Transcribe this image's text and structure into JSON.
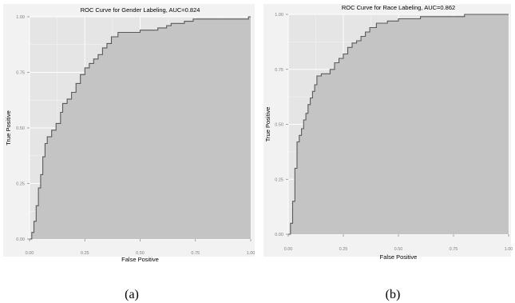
{
  "chart_data": [
    {
      "type": "area",
      "title": "ROC Curve for Gender Labeling, AUC=0.824",
      "xlabel": "False Positive",
      "ylabel": "True Positive",
      "xlim": [
        0,
        1
      ],
      "ylim": [
        0,
        1
      ],
      "xticks": [
        "0.00",
        "0.25",
        "0.50",
        "0.75",
        "1.00"
      ],
      "yticks": [
        "0.00",
        "0.25",
        "0.50",
        "0.75",
        "1.00"
      ],
      "grid": true,
      "caption": "(a)",
      "series": [
        {
          "x": [
            0.0,
            0.01,
            0.01,
            0.02,
            0.02,
            0.03,
            0.03,
            0.04,
            0.04,
            0.05,
            0.05,
            0.06,
            0.06,
            0.07,
            0.07,
            0.08,
            0.08,
            0.1,
            0.1,
            0.12,
            0.12,
            0.14,
            0.14,
            0.15,
            0.15,
            0.17,
            0.17,
            0.19,
            0.19,
            0.21,
            0.21,
            0.23,
            0.23,
            0.25,
            0.25,
            0.27,
            0.27,
            0.29,
            0.29,
            0.31,
            0.31,
            0.33,
            0.33,
            0.35,
            0.35,
            0.37,
            0.37,
            0.4,
            0.4,
            0.5,
            0.5,
            0.58,
            0.58,
            0.62,
            0.62,
            0.64,
            0.64,
            0.7,
            0.7,
            0.74,
            0.74,
            0.8,
            0.8,
            0.9,
            0.9,
            0.99,
            0.99,
            1.0
          ],
          "y": [
            0.0,
            0.0,
            0.03,
            0.03,
            0.08,
            0.08,
            0.15,
            0.15,
            0.23,
            0.23,
            0.29,
            0.29,
            0.37,
            0.37,
            0.43,
            0.43,
            0.46,
            0.46,
            0.49,
            0.49,
            0.52,
            0.52,
            0.57,
            0.57,
            0.61,
            0.61,
            0.63,
            0.63,
            0.66,
            0.66,
            0.7,
            0.7,
            0.74,
            0.74,
            0.77,
            0.77,
            0.79,
            0.79,
            0.81,
            0.81,
            0.83,
            0.83,
            0.86,
            0.86,
            0.88,
            0.88,
            0.91,
            0.91,
            0.93,
            0.93,
            0.94,
            0.94,
            0.95,
            0.95,
            0.96,
            0.96,
            0.97,
            0.97,
            0.98,
            0.98,
            0.99,
            0.99,
            0.99,
            0.99,
            0.99,
            0.99,
            1.0,
            1.0
          ]
        }
      ]
    },
    {
      "type": "area",
      "title": "ROC Curve for Race Labeling, AUC=0.862",
      "xlabel": "False Positive",
      "ylabel": "True Positive",
      "xlim": [
        0,
        1
      ],
      "ylim": [
        0,
        1
      ],
      "xticks": [
        "0.00",
        "0.25",
        "0.50",
        "0.75",
        "1.00"
      ],
      "yticks": [
        "0.00",
        "0.25",
        "0.50",
        "0.75",
        "1.00"
      ],
      "grid": true,
      "caption": "(b)",
      "series": [
        {
          "x": [
            0.0,
            0.01,
            0.01,
            0.02,
            0.02,
            0.03,
            0.03,
            0.04,
            0.04,
            0.05,
            0.05,
            0.06,
            0.06,
            0.07,
            0.07,
            0.08,
            0.08,
            0.09,
            0.09,
            0.1,
            0.1,
            0.11,
            0.11,
            0.12,
            0.12,
            0.13,
            0.13,
            0.15,
            0.15,
            0.19,
            0.19,
            0.21,
            0.21,
            0.23,
            0.23,
            0.25,
            0.25,
            0.27,
            0.27,
            0.29,
            0.29,
            0.31,
            0.31,
            0.33,
            0.33,
            0.35,
            0.35,
            0.37,
            0.37,
            0.4,
            0.4,
            0.45,
            0.45,
            0.5,
            0.5,
            0.6,
            0.6,
            0.7,
            0.7,
            0.8,
            0.8,
            0.95,
            0.95,
            1.0
          ],
          "y": [
            0.0,
            0.0,
            0.05,
            0.05,
            0.15,
            0.15,
            0.3,
            0.3,
            0.42,
            0.42,
            0.45,
            0.45,
            0.48,
            0.48,
            0.52,
            0.52,
            0.55,
            0.55,
            0.59,
            0.59,
            0.62,
            0.62,
            0.65,
            0.65,
            0.68,
            0.68,
            0.72,
            0.72,
            0.73,
            0.73,
            0.75,
            0.75,
            0.78,
            0.78,
            0.8,
            0.8,
            0.82,
            0.82,
            0.85,
            0.85,
            0.87,
            0.87,
            0.88,
            0.88,
            0.9,
            0.9,
            0.92,
            0.92,
            0.94,
            0.94,
            0.96,
            0.96,
            0.97,
            0.97,
            0.98,
            0.98,
            0.99,
            0.99,
            0.99,
            0.99,
            1.0,
            1.0,
            1.0,
            1.0
          ]
        }
      ]
    }
  ],
  "colors": {
    "outer_bg": "#f2f2f2",
    "panel_bg": "#e5e5e5",
    "grid": "#ffffff",
    "area_fill": "#c4c4c4",
    "curve": "#595959",
    "text": "#000000",
    "tick_text": "#7f7f7f"
  }
}
